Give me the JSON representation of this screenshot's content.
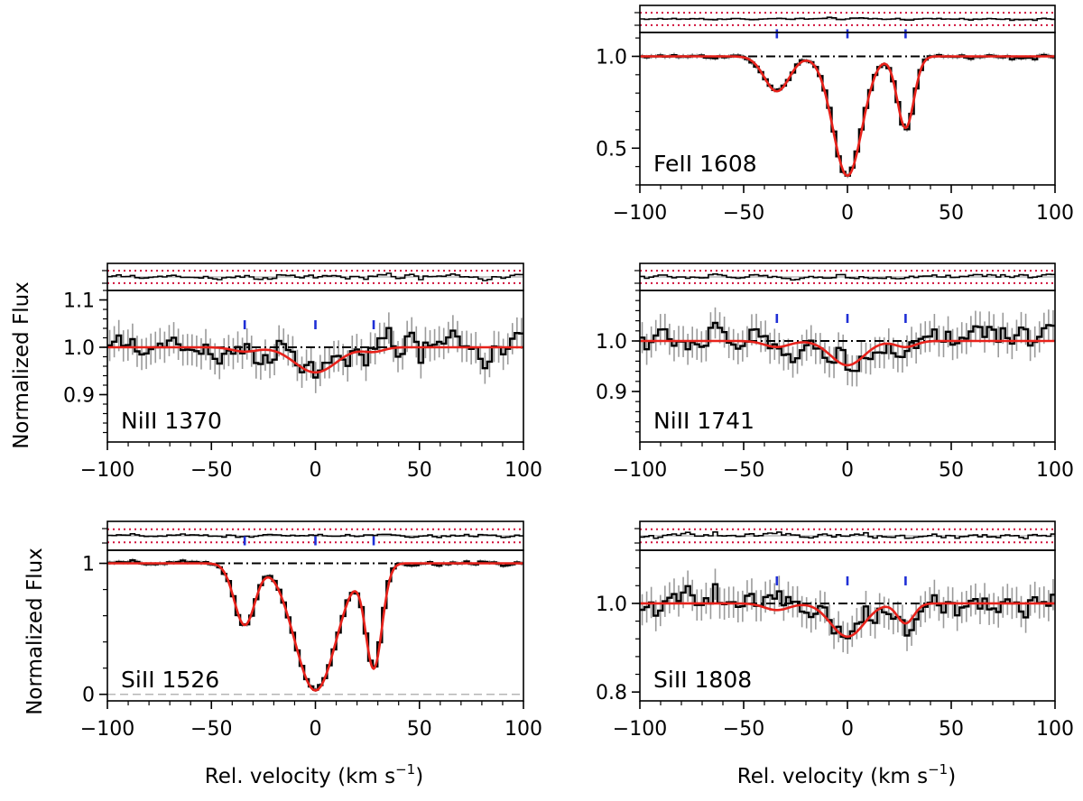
{
  "figure": {
    "ylabel": "Normalized Flux",
    "xlabel_main": "Rel. velocity  (km s",
    "xlabel_sup": "−1",
    "xlabel_close": ")"
  },
  "colors": {
    "data": "#000000",
    "error_bars": "#9a9a9a",
    "model": "#e8221b",
    "continuum": "#000000",
    "component_ticks": "#1f2fd6",
    "residual_band": "#d0103a",
    "zero_level": "#b5b5b5"
  },
  "chart_data": [
    {
      "type": "line",
      "ion": "FeII 1608",
      "label": "FeII 1608",
      "xlim": [
        -100,
        100
      ],
      "ylim": [
        0.3,
        1.13
      ],
      "xticks": [
        -100,
        -50,
        0,
        50,
        100
      ],
      "xtick_labels": [
        "−100",
        "−50",
        "0",
        "50",
        "100"
      ],
      "yticks": [
        0.5,
        1.0
      ],
      "ytick_labels": [
        "0.5",
        "1.0"
      ],
      "components_kms": [
        -34,
        0,
        28
      ],
      "model": [
        {
          "depth": 0.19,
          "center": -34,
          "width": 6
        },
        {
          "depth": 0.65,
          "center": 0,
          "width": 7
        },
        {
          "depth": 0.39,
          "center": 28,
          "width": 4
        }
      ],
      "noise": 0.012,
      "residual_band": 0.06
    },
    {
      "type": "line",
      "ion": "NiII 1370",
      "label": "NiII 1370",
      "xlim": [
        -100,
        100
      ],
      "ylim": [
        0.8,
        1.12
      ],
      "xticks": [
        -100,
        -50,
        0,
        50,
        100
      ],
      "xtick_labels": [
        "−100",
        "−50",
        "0",
        "50",
        "100"
      ],
      "yticks": [
        0.9,
        1.0,
        1.1
      ],
      "ytick_labels": [
        "0.9",
        "1.0",
        "1.1"
      ],
      "components_kms": [
        -34,
        0,
        28
      ],
      "model": [
        {
          "depth": 0.009,
          "center": -34,
          "width": 6
        },
        {
          "depth": 0.053,
          "center": 0,
          "width": 10
        },
        {
          "depth": 0.009,
          "center": 28,
          "width": 5
        }
      ],
      "noise": 0.03,
      "residual_band": 0.06
    },
    {
      "type": "line",
      "ion": "NiII 1741",
      "label": "NiII 1741",
      "xlim": [
        -100,
        100
      ],
      "ylim": [
        0.8,
        1.1
      ],
      "xticks": [
        -100,
        -50,
        0,
        50,
        100
      ],
      "xtick_labels": [
        "−100",
        "−50",
        "0",
        "50",
        "100"
      ],
      "yticks": [
        0.9,
        1.0
      ],
      "ytick_labels": [
        "0.9",
        "1.0"
      ],
      "components_kms": [
        -34,
        0,
        28
      ],
      "model": [
        {
          "depth": 0.012,
          "center": -34,
          "width": 6
        },
        {
          "depth": 0.048,
          "center": 0,
          "width": 8
        },
        {
          "depth": 0.012,
          "center": 28,
          "width": 5
        }
      ],
      "noise": 0.028,
      "residual_band": 0.06
    },
    {
      "type": "line",
      "ion": "SiII 1526",
      "label": "SiII 1526",
      "xlim": [
        -100,
        100
      ],
      "ylim": [
        -0.05,
        1.1
      ],
      "xticks": [
        -100,
        -50,
        0,
        50,
        100
      ],
      "xtick_labels": [
        "−100",
        "−50",
        "0",
        "50",
        "100"
      ],
      "yticks": [
        0,
        1
      ],
      "ytick_labels": [
        "0",
        "1"
      ],
      "components_kms": [
        -34,
        0,
        28
      ],
      "model": [
        {
          "depth": 0.47,
          "center": -34,
          "width": 5
        },
        {
          "depth": 0.97,
          "center": 0,
          "width": 10
        },
        {
          "depth": 0.8,
          "center": 28,
          "width": 4
        }
      ],
      "noise": 0.015,
      "residual_band": 0.06
    },
    {
      "type": "line",
      "ion": "SiII 1808",
      "label": "SiII 1808",
      "xlim": [
        -100,
        100
      ],
      "ylim": [
        0.78,
        1.12
      ],
      "xticks": [
        -100,
        -50,
        0,
        50,
        100
      ],
      "xtick_labels": [
        "−100",
        "−50",
        "0",
        "50",
        "100"
      ],
      "yticks": [
        0.8,
        1.0
      ],
      "ytick_labels": [
        "0.8",
        "1.0"
      ],
      "components_kms": [
        -34,
        0,
        28
      ],
      "model": [
        {
          "depth": 0.015,
          "center": -34,
          "width": 6
        },
        {
          "depth": 0.075,
          "center": 0,
          "width": 8
        },
        {
          "depth": 0.045,
          "center": 28,
          "width": 4
        }
      ],
      "noise": 0.032,
      "residual_band": 0.06
    }
  ]
}
